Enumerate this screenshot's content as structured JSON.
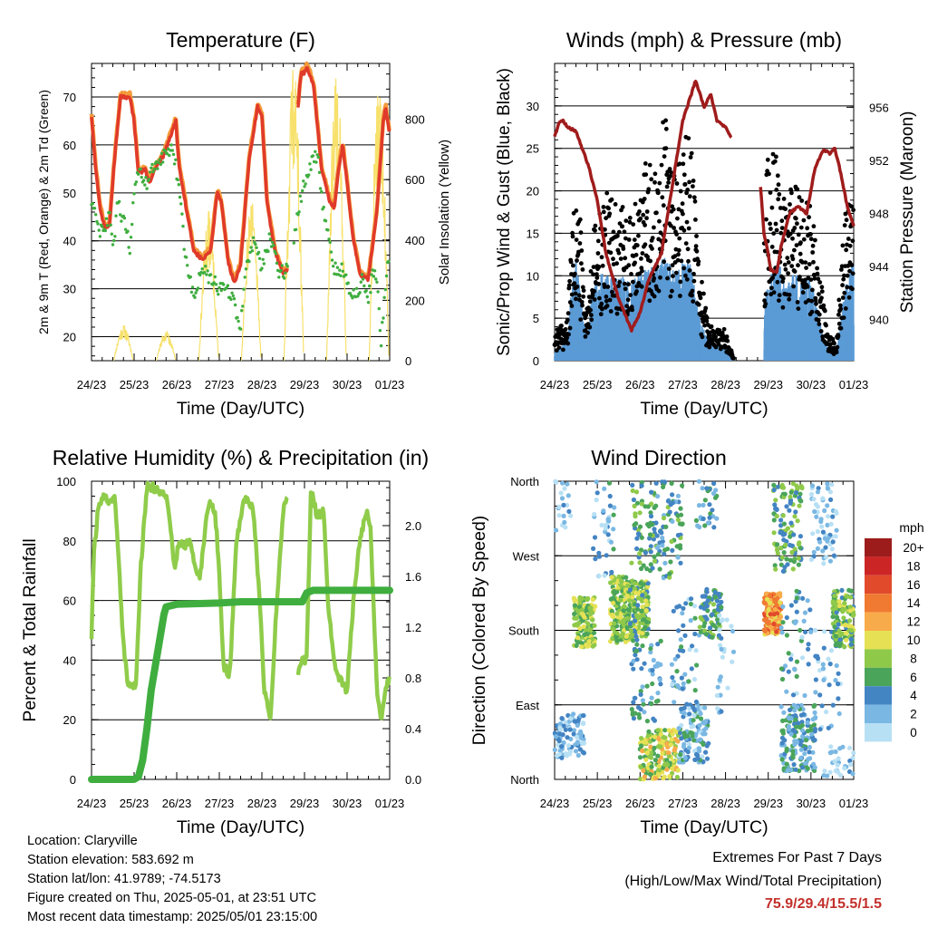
{
  "colors": {
    "temp_2m": "#e03a2a",
    "temp_9m": "#f59a3a",
    "dewpoint": "#3fae3f",
    "solar": "#f7e16c",
    "sonic_wind": "#5b9bd5",
    "gust": "#000000",
    "pressure": "#a01c1c",
    "rh": "#8fcc4a",
    "precip": "#3fae3f"
  },
  "footer": {
    "location": "Location: Claryville",
    "elevation": "Station elevation: 583.692 m",
    "latlon": "Station lat/lon: 41.9789; -74.5173",
    "created": "Figure created on Thu, 2025-05-01, at 23:51 UTC",
    "recent": "Most recent data timestamp: 2025/05/01 23:15:00"
  },
  "extremes": {
    "title": "Extremes For Past 7 Days",
    "subtitle": "(High/Low/Max Wind/Total Precipitation)",
    "values": "75.9/29.4/15.5/1.5"
  },
  "chart_data": [
    {
      "type": "line",
      "title": "Temperature (F)",
      "xlabel": "Time (Day/UTC)",
      "ylabel": "2m & 9m T (Red, Orange) & 2m Td (Green)",
      "ylabel_right": "Solar Insolation (Yellow)",
      "x_ticks": [
        "24/23",
        "25/23",
        "26/23",
        "27/23",
        "28/23",
        "29/23",
        "30/23",
        "01/23"
      ],
      "xlim": [
        0,
        7
      ],
      "ylim": [
        15,
        77
      ],
      "y_ticks": [
        20,
        30,
        40,
        50,
        60,
        70
      ],
      "ylim_right": [
        0,
        985
      ],
      "y_ticks_right": [
        0,
        200,
        400,
        600,
        800
      ],
      "grid": "horizontal",
      "series": [
        {
          "name": "2m T",
          "axis": "left",
          "x": [
            0,
            0.1,
            0.2,
            0.3,
            0.42,
            0.55,
            0.68,
            0.9,
            1.0,
            1.1,
            1.25,
            1.35,
            1.5,
            1.7,
            1.9,
            1.98,
            2.05,
            2.2,
            2.4,
            2.6,
            2.8,
            2.95,
            3.05,
            3.2,
            3.35,
            3.5,
            3.7,
            3.9,
            4.0,
            4.12,
            4.3,
            4.5,
            4.6
          ],
          "y": [
            66,
            55,
            47,
            43,
            43,
            58,
            70,
            70,
            65,
            54,
            55,
            52,
            55,
            58,
            63,
            65,
            56,
            48,
            38,
            36,
            38,
            50,
            48,
            36,
            31,
            35,
            57,
            68,
            66,
            48,
            38,
            33,
            34
          ]
        },
        {
          "name": "2m T (after gap)",
          "axis": "left",
          "x": [
            4.85,
            4.92,
            5.0,
            5.05,
            5.12,
            5.22,
            5.4,
            5.6,
            5.7,
            5.8,
            5.9,
            6.0,
            6.15,
            6.3,
            6.5,
            6.7,
            6.85,
            6.9,
            7.0
          ],
          "y": [
            68,
            75,
            75,
            76,
            75,
            72,
            55,
            48,
            47,
            55,
            60,
            52,
            40,
            33,
            32,
            46,
            65,
            68,
            62
          ]
        },
        {
          "name": "2m Td",
          "axis": "left",
          "x": [
            0,
            0.1,
            0.2,
            0.3,
            0.42,
            0.5,
            0.55,
            0.6,
            0.8,
            0.9,
            1.0,
            1.1,
            1.3,
            1.5,
            1.7,
            1.9,
            2.05,
            2.2,
            2.4,
            2.6,
            2.8,
            3.0,
            3.2,
            3.3,
            3.5,
            3.6,
            3.8,
            4.0,
            4.2,
            4.4,
            4.6
          ],
          "y": [
            48,
            45,
            42,
            42,
            45,
            40,
            40,
            48,
            43,
            38,
            50,
            54,
            52,
            56,
            58,
            59,
            52,
            37,
            28,
            34,
            32,
            30,
            30,
            28,
            22,
            33,
            40,
            34,
            41,
            33,
            34
          ]
        },
        {
          "name": "2m Td (after gap)",
          "axis": "left",
          "x": [
            4.75,
            4.85,
            5.0,
            5.15,
            5.3,
            5.45,
            5.55,
            5.7,
            5.9,
            6.05,
            6.2,
            6.35,
            6.5,
            6.6,
            6.7,
            6.8,
            6.85,
            6.95,
            7.0
          ],
          "y": [
            40,
            46,
            52,
            56,
            58,
            46,
            43,
            34,
            34,
            30,
            28,
            32,
            28,
            33,
            32,
            18,
            25,
            34,
            38
          ]
        }
      ]
    },
    {
      "type": "scatter",
      "title": "Winds (mph) & Pressure (mb)",
      "xlabel": "Time (Day/UTC)",
      "ylabel": "Sonic/Prop Wind & Gust (Blue, Black)",
      "ylabel_right": "Station Pressure (Maroon)",
      "x_ticks": [
        "24/23",
        "25/23",
        "26/23",
        "27/23",
        "28/23",
        "29/23",
        "30/23",
        "01/23"
      ],
      "xlim": [
        0,
        7
      ],
      "ylim": [
        0,
        35
      ],
      "y_ticks": [
        0,
        5,
        10,
        15,
        20,
        25,
        30
      ],
      "ylim_right": [
        936.9,
        959.3
      ],
      "y_ticks_right": [
        940,
        944,
        948,
        952,
        956
      ],
      "grid": "horizontal",
      "pressure_series": [
        {
          "name": "Station Pressure",
          "x": [
            0,
            0.1,
            0.2,
            0.3,
            0.5,
            0.8,
            1.0,
            1.2,
            1.5,
            1.8,
            2.0,
            2.2,
            2.5,
            2.8,
            3.0,
            3.3,
            3.5,
            3.65,
            3.8,
            4.0,
            4.15
          ],
          "y": [
            953.8,
            954.8,
            955.0,
            954.5,
            954.2,
            951.5,
            949.0,
            945.0,
            941.5,
            939.2,
            940.5,
            943.0,
            945.0,
            951.0,
            955.0,
            958.0,
            956.0,
            957.0,
            955.0,
            954.5,
            953.6
          ]
        },
        {
          "name": "Station Pressure (after gap)",
          "x": [
            4.82,
            4.9,
            5.0,
            5.05,
            5.2,
            5.3,
            5.5,
            5.7,
            5.9,
            6.1,
            6.3,
            6.45,
            6.55,
            6.7,
            6.85,
            7.0
          ],
          "y": [
            950.0,
            946.5,
            945.0,
            943.8,
            943.5,
            945.5,
            948.0,
            948.5,
            948.0,
            951.5,
            952.8,
            952.5,
            953.0,
            951.0,
            948.5,
            947.0
          ]
        }
      ],
      "wind_mean_profile": {
        "x": [
          0,
          0.3,
          0.4,
          0.5,
          0.6,
          0.7,
          0.8,
          0.9,
          1.0,
          1.2,
          1.4,
          1.6,
          1.8,
          2.0,
          2.2,
          2.4,
          2.6,
          2.8,
          3.0,
          3.2,
          3.4,
          3.6,
          3.8,
          4.0,
          4.2,
          4.5,
          4.8,
          5.0,
          5.2,
          5.4,
          5.6,
          5.8,
          6.0,
          6.2,
          6.4,
          6.6,
          6.8,
          7.0
        ],
        "y": [
          0.8,
          1.5,
          5.5,
          7.5,
          5.0,
          3.0,
          2.5,
          5.5,
          6.0,
          6.5,
          6.0,
          6.0,
          5.5,
          6.5,
          6.5,
          7.0,
          7.5,
          6.5,
          7.0,
          7.0,
          3.0,
          1.5,
          1.2,
          1.0,
          0.0,
          0.0,
          0.0,
          6.5,
          7.5,
          6.0,
          6.5,
          6.0,
          6.0,
          3.0,
          0.8,
          0.5,
          5.5,
          7.5
        ]
      },
      "gust_mean_profile": {
        "x": [
          0,
          0.3,
          0.4,
          0.5,
          0.6,
          0.7,
          0.8,
          0.9,
          1.0,
          1.2,
          1.4,
          1.6,
          1.8,
          2.0,
          2.2,
          2.4,
          2.6,
          2.8,
          3.0,
          3.2,
          3.4,
          3.6,
          3.8,
          4.0,
          4.2,
          4.5,
          4.8,
          5.0,
          5.2,
          5.4,
          5.6,
          5.8,
          6.0,
          6.2,
          6.4,
          6.6,
          6.8,
          7.0
        ],
        "y": [
          2.5,
          3.0,
          10.0,
          13.0,
          11.0,
          5.0,
          4.5,
          10.0,
          11.0,
          13.0,
          12.0,
          12.0,
          11.0,
          15.0,
          15.0,
          17.0,
          19.0,
          15.0,
          17.0,
          17.0,
          7.0,
          3.0,
          2.5,
          2.5,
          0.0,
          0.0,
          0.0,
          18.0,
          16.0,
          12.0,
          14.0,
          12.0,
          12.0,
          7.0,
          2.0,
          1.5,
          13.0,
          14.0
        ]
      },
      "data_gap": [
        4.2,
        4.9
      ]
    },
    {
      "type": "line",
      "title": "Relative Humidity (%) & Precipitation (in)",
      "xlabel": "Time (Day/UTC)",
      "ylabel": "Percent & Total Rainfall",
      "x_ticks": [
        "24/23",
        "25/23",
        "26/23",
        "27/23",
        "28/23",
        "29/23",
        "30/23",
        "01/23"
      ],
      "xlim": [
        0,
        7
      ],
      "ylim": [
        0,
        100
      ],
      "y_ticks": [
        0,
        20,
        40,
        60,
        80,
        100
      ],
      "ylim_right": [
        0,
        2.35
      ],
      "y_ticks_right": [
        "0.0",
        "0.4",
        "0.8",
        "1.2",
        "1.6",
        "2.0"
      ],
      "grid": "horizontal",
      "series": [
        {
          "name": "Relative Humidity",
          "axis": "left",
          "x": [
            0,
            0.05,
            0.15,
            0.25,
            0.4,
            0.55,
            0.65,
            0.75,
            0.85,
            0.95,
            1.05,
            1.15,
            1.3,
            1.45,
            1.6,
            1.75,
            1.85,
            1.95,
            2.05,
            2.15,
            2.3,
            2.45,
            2.55,
            2.7,
            2.8,
            2.9,
            3.0,
            3.1,
            3.25,
            3.4,
            3.6,
            3.8,
            3.95,
            4.05,
            4.2,
            4.35,
            4.5,
            4.6
          ],
          "y": [
            47,
            75,
            90,
            95,
            93,
            95,
            70,
            45,
            32,
            30,
            33,
            70,
            98,
            98,
            96,
            95,
            85,
            70,
            80,
            78,
            80,
            70,
            68,
            88,
            93,
            90,
            70,
            38,
            35,
            80,
            95,
            90,
            60,
            30,
            20,
            60,
            90,
            96
          ]
        },
        {
          "name": "Relative Humidity (after gap)",
          "axis": "left",
          "x": [
            4.85,
            4.95,
            5.05,
            5.15,
            5.3,
            5.45,
            5.55,
            5.7,
            5.85,
            6.0,
            6.15,
            6.3,
            6.45,
            6.55,
            6.7,
            6.8,
            6.9,
            7.0
          ],
          "y": [
            35,
            40,
            40,
            97,
            88,
            90,
            60,
            38,
            33,
            30,
            60,
            80,
            90,
            85,
            30,
            20,
            30,
            34
          ]
        },
        {
          "name": "Total Rainfall",
          "axis": "right",
          "x": [
            0,
            1.0,
            1.1,
            1.2,
            1.3,
            1.4,
            1.5,
            1.6,
            1.7,
            1.75,
            2.0,
            3.0,
            3.5,
            4.5,
            4.95,
            5.05,
            5.2,
            7.0
          ],
          "y": [
            0,
            0,
            0.02,
            0.15,
            0.4,
            0.7,
            0.9,
            1.1,
            1.3,
            1.36,
            1.38,
            1.39,
            1.4,
            1.4,
            1.4,
            1.47,
            1.49,
            1.49
          ]
        }
      ]
    },
    {
      "type": "scatter",
      "title": "Wind Direction",
      "xlabel": "Time (Day/UTC)",
      "ylabel": "Direction (Colored By Speed)",
      "x_ticks": [
        "24/23",
        "25/23",
        "26/23",
        "27/23",
        "28/23",
        "29/23",
        "30/23",
        "01/23"
      ],
      "xlim": [
        0,
        7
      ],
      "y_ticks": [
        "North",
        "East",
        "South",
        "West",
        "North"
      ],
      "ylim": [
        0,
        360
      ],
      "grid": "horizontal",
      "colorbar": {
        "title": "mph",
        "labels": [
          "20+",
          "18",
          "16",
          "14",
          "12",
          "10",
          "8",
          "6",
          "4",
          "2",
          "0"
        ],
        "colors": [
          "#9c1c1c",
          "#cc2525",
          "#e14b2c",
          "#f07a32",
          "#f8ab4a",
          "#e6e154",
          "#8fc94a",
          "#4aa55a",
          "#4384c3",
          "#7ab8e3",
          "#b8e0f4"
        ]
      },
      "clusters": [
        {
          "x": [
            0.0,
            0.7
          ],
          "dir": [
            25,
            80
          ],
          "speed": 2,
          "n": 90
        },
        {
          "x": [
            0.0,
            0.4
          ],
          "dir": [
            300,
            360
          ],
          "speed": 1,
          "n": 20
        },
        {
          "x": [
            0.45,
            0.95
          ],
          "dir": [
            160,
            220
          ],
          "speed": 8,
          "n": 150
        },
        {
          "x": [
            0.9,
            1.4
          ],
          "dir": [
            240,
            360
          ],
          "speed": 3,
          "n": 40
        },
        {
          "x": [
            1.3,
            1.75
          ],
          "dir": [
            165,
            245
          ],
          "speed": 8,
          "n": 170
        },
        {
          "x": [
            1.7,
            2.2
          ],
          "dir": [
            170,
            240
          ],
          "speed": 7,
          "n": 160
        },
        {
          "x": [
            1.8,
            2.4
          ],
          "dir": [
            250,
            360
          ],
          "speed": 6,
          "n": 70
        },
        {
          "x": [
            1.8,
            2.5
          ],
          "dir": [
            70,
            170
          ],
          "speed": 4,
          "n": 60
        },
        {
          "x": [
            2.0,
            2.9
          ],
          "dir": [
            0,
            60
          ],
          "speed": 9,
          "n": 170
        },
        {
          "x": [
            2.4,
            3.0
          ],
          "dir": [
            240,
            360
          ],
          "speed": 5,
          "n": 70
        },
        {
          "x": [
            2.9,
            3.6
          ],
          "dir": [
            20,
            90
          ],
          "speed": 3,
          "n": 110
        },
        {
          "x": [
            2.7,
            3.4
          ],
          "dir": [
            90,
            220
          ],
          "speed": 3,
          "n": 50
        },
        {
          "x": [
            3.4,
            3.9
          ],
          "dir": [
            170,
            230
          ],
          "speed": 6,
          "n": 80
        },
        {
          "x": [
            3.3,
            3.8
          ],
          "dir": [
            300,
            360
          ],
          "speed": 4,
          "n": 30
        },
        {
          "x": [
            3.8,
            4.2
          ],
          "dir": [
            80,
            200
          ],
          "speed": 1,
          "n": 25
        },
        {
          "x": [
            4.9,
            5.3
          ],
          "dir": [
            175,
            225
          ],
          "speed": 13,
          "n": 150
        },
        {
          "x": [
            5.1,
            5.8
          ],
          "dir": [
            250,
            360
          ],
          "speed": 6,
          "n": 110
        },
        {
          "x": [
            5.3,
            6.1
          ],
          "dir": [
            10,
            90
          ],
          "speed": 4,
          "n": 150
        },
        {
          "x": [
            5.3,
            6.0
          ],
          "dir": [
            100,
            230
          ],
          "speed": 3,
          "n": 50
        },
        {
          "x": [
            6.0,
            6.6
          ],
          "dir": [
            260,
            360
          ],
          "speed": 1,
          "n": 60
        },
        {
          "x": [
            6.1,
            6.7
          ],
          "dir": [
            60,
            180
          ],
          "speed": 2,
          "n": 40
        },
        {
          "x": [
            6.5,
            7.0
          ],
          "dir": [
            160,
            230
          ],
          "speed": 7,
          "n": 140
        },
        {
          "x": [
            6.3,
            7.0
          ],
          "dir": [
            0,
            40
          ],
          "speed": 1,
          "n": 30
        }
      ]
    }
  ]
}
